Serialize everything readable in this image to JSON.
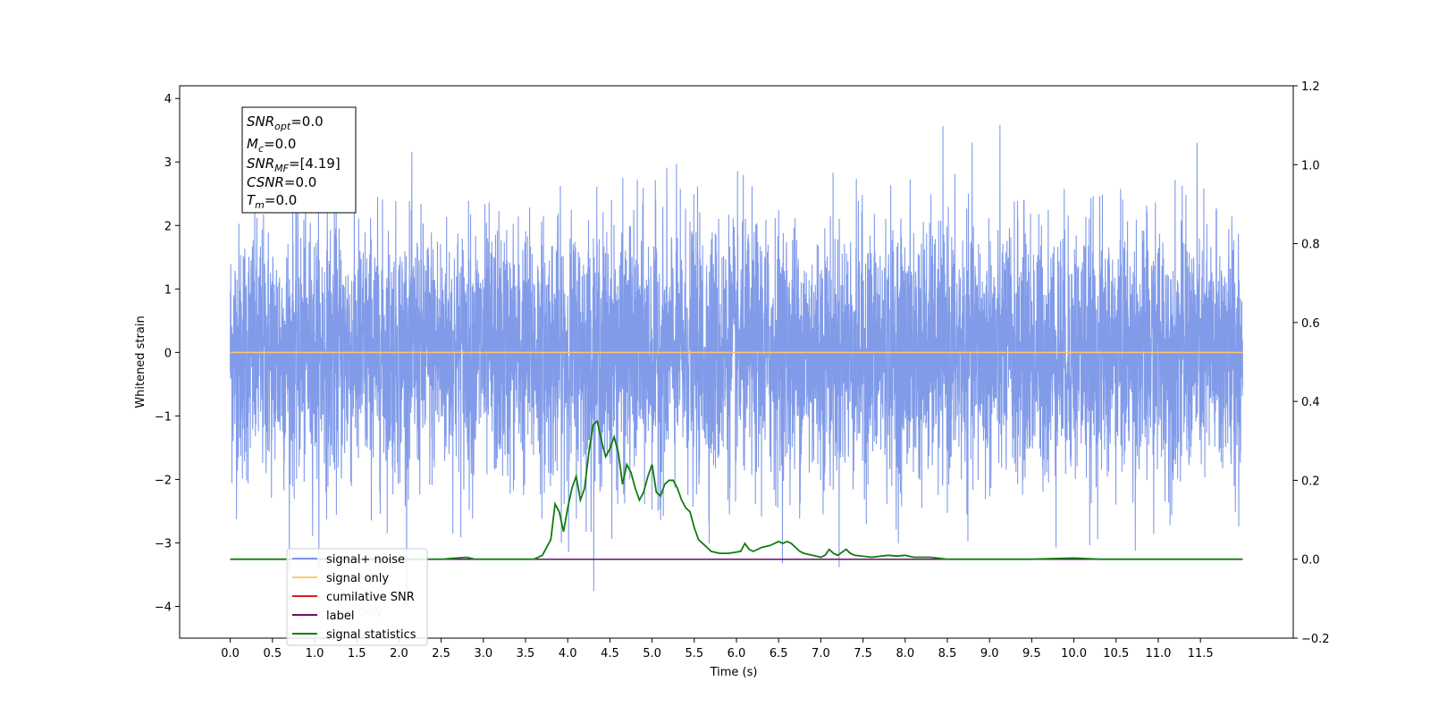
{
  "chart_data": {
    "type": "line",
    "xlabel": "Time (s)",
    "ylabel": "Whitened strain",
    "x_ticks": [
      "0.0",
      "0.5",
      "1.0",
      "1.5",
      "2.0",
      "2.5",
      "3.0",
      "3.5",
      "4.0",
      "4.5",
      "5.0",
      "5.5",
      "6.0",
      "6.5",
      "7.0",
      "7.5",
      "8.0",
      "8.5",
      "9.0",
      "9.5",
      "10.0",
      "10.5",
      "11.0",
      "11.5"
    ],
    "y_left_ticks": [
      "4",
      "3",
      "2",
      "1",
      "0",
      "−1",
      "−2",
      "−3",
      "−4"
    ],
    "y_right_ticks": [
      "1.2",
      "1.0",
      "0.8",
      "0.6",
      "0.4",
      "0.2",
      "0.0",
      "−0.2"
    ],
    "xlim": [
      -0.6,
      12.6
    ],
    "ylim_left": [
      -4.5,
      4.2
    ],
    "ylim_right": [
      -0.2,
      1.2
    ],
    "grid": false,
    "legend_placement": "lower-left",
    "series": [
      {
        "name": "signal+ noise",
        "axis": "left",
        "color": "#7a96e8",
        "x_range": [
          0.0,
          12.0
        ],
        "approx_mean": 0.0,
        "approx_spread": [
          -4.1,
          3.75
        ],
        "note_values": "dense noise samples"
      },
      {
        "name": "signal only",
        "axis": "left",
        "color": "#ffc66e",
        "x": [
          0.0,
          12.0
        ],
        "y": [
          0.0,
          0.0
        ]
      },
      {
        "name": "cumilative SNR",
        "axis": "right",
        "color": "#e41a1c",
        "x": [],
        "y": []
      },
      {
        "name": "label",
        "axis": "right",
        "color": "#6a0d6f",
        "x": [
          0.0,
          12.0
        ],
        "y": [
          0.0,
          0.0
        ]
      },
      {
        "name": "signal statistics",
        "axis": "right",
        "color": "#107c10",
        "x": [
          0.0,
          2.5,
          2.8,
          2.9,
          3.0,
          3.3,
          3.6,
          3.7,
          3.75,
          3.8,
          3.85,
          3.9,
          3.95,
          4.0,
          4.05,
          4.1,
          4.15,
          4.2,
          4.25,
          4.3,
          4.35,
          4.4,
          4.45,
          4.5,
          4.55,
          4.6,
          4.65,
          4.7,
          4.75,
          4.8,
          4.85,
          4.9,
          4.95,
          5.0,
          5.05,
          5.1,
          5.15,
          5.2,
          5.25,
          5.3,
          5.35,
          5.4,
          5.45,
          5.5,
          5.55,
          5.6,
          5.65,
          5.7,
          5.8,
          5.9,
          6.0,
          6.05,
          6.1,
          6.15,
          6.2,
          6.3,
          6.4,
          6.5,
          6.55,
          6.6,
          6.65,
          6.7,
          6.75,
          6.8,
          6.9,
          7.0,
          7.05,
          7.1,
          7.15,
          7.2,
          7.3,
          7.35,
          7.4,
          7.6,
          7.8,
          7.9,
          8.0,
          8.1,
          8.3,
          8.5,
          9.5,
          10.0,
          10.3,
          11.0,
          12.0
        ],
        "y": [
          0.0,
          0.0,
          0.005,
          0.0,
          0.0,
          0.0,
          0.0,
          0.01,
          0.03,
          0.05,
          0.14,
          0.12,
          0.07,
          0.13,
          0.18,
          0.21,
          0.15,
          0.18,
          0.27,
          0.34,
          0.35,
          0.3,
          0.26,
          0.28,
          0.31,
          0.27,
          0.19,
          0.24,
          0.22,
          0.18,
          0.15,
          0.17,
          0.21,
          0.24,
          0.17,
          0.16,
          0.19,
          0.2,
          0.2,
          0.18,
          0.15,
          0.13,
          0.12,
          0.08,
          0.05,
          0.04,
          0.03,
          0.02,
          0.015,
          0.015,
          0.018,
          0.02,
          0.04,
          0.025,
          0.02,
          0.03,
          0.035,
          0.045,
          0.04,
          0.045,
          0.04,
          0.03,
          0.02,
          0.015,
          0.01,
          0.005,
          0.01,
          0.025,
          0.015,
          0.01,
          0.025,
          0.015,
          0.01,
          0.005,
          0.01,
          0.008,
          0.01,
          0.005,
          0.005,
          0.0,
          0.0,
          0.003,
          0.0,
          0.0,
          0.0
        ]
      }
    ]
  },
  "legend": {
    "items": [
      "signal+ noise",
      "signal only",
      "cumilative SNR",
      "label",
      "signal statistics"
    ],
    "ghost_text": [
      "label only"
    ]
  },
  "info_box": {
    "snr_opt": {
      "base": "SNR",
      "sub": "opt",
      "value": "=0.0"
    },
    "mc": {
      "base": "M",
      "sub": "c",
      "value": "=0.0"
    },
    "snr_mf": {
      "base": "SNR",
      "sub": "MF",
      "value": "=[4.19]"
    },
    "csnr": {
      "base": "CSNR",
      "value": "=0.0"
    },
    "tm": {
      "base": "T",
      "sub": "m",
      "value": "=0.0"
    }
  }
}
